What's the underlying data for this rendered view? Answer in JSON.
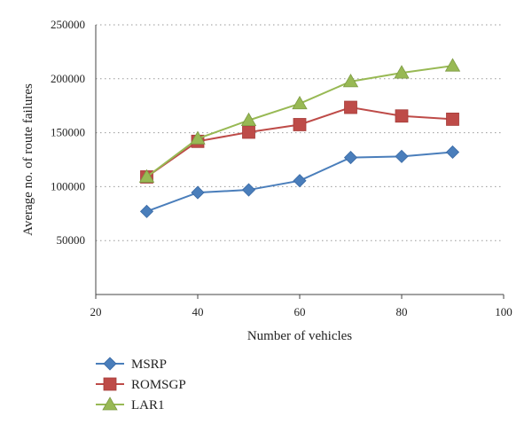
{
  "chart_data": {
    "type": "line",
    "xlabel": "Number of vehicles",
    "ylabel": "Average no. of route failures",
    "xlim": [
      20,
      100
    ],
    "ylim": [
      0,
      250000
    ],
    "x_ticks": [
      20,
      40,
      60,
      80,
      100
    ],
    "y_ticks": [
      50000,
      100000,
      150000,
      200000,
      250000
    ],
    "grid": "horizontal-dotted",
    "legend_position": "bottom-left",
    "x": [
      30,
      40,
      50,
      60,
      70,
      80,
      90
    ],
    "series": [
      {
        "name": "MSRP",
        "color": "#4a7ebb",
        "marker": "diamond",
        "values": [
          77000,
          94500,
          97000,
          105500,
          127000,
          128000,
          132000
        ]
      },
      {
        "name": "ROMSGP",
        "color": "#be4b48",
        "marker": "square",
        "values": [
          109000,
          142000,
          150500,
          157500,
          173500,
          165500,
          162500
        ]
      },
      {
        "name": "LAR1",
        "color": "#98b954",
        "marker": "triangle",
        "values": [
          109000,
          144500,
          161500,
          177000,
          197500,
          205500,
          212000
        ]
      }
    ]
  }
}
